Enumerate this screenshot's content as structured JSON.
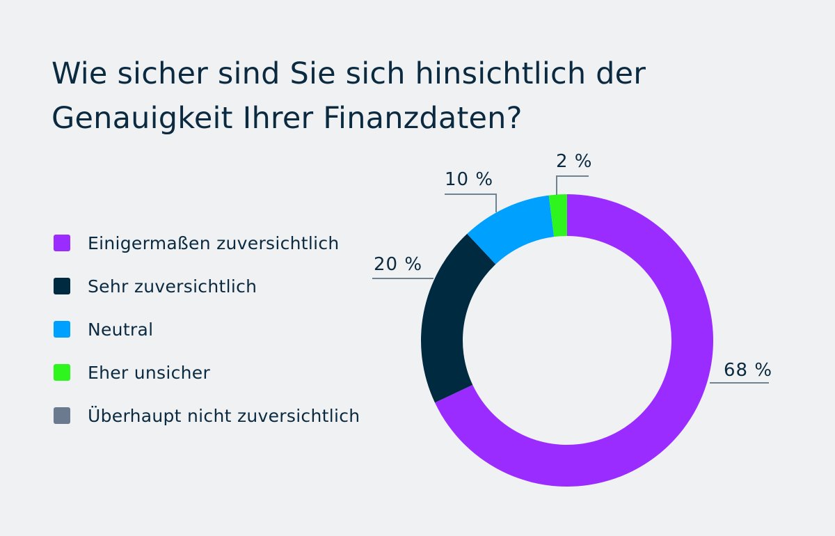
{
  "chart_data": {
    "type": "pie",
    "subtype": "donut",
    "title": "Wie sicher sind Sie sich hinsichtlich der Genauigkeit Ihrer Finanzdaten?",
    "title_lines": [
      "Wie sicher sind Sie sich hinsichtlich der",
      "Genauigkeit Ihrer Finanzdaten?"
    ],
    "legend_position": "left",
    "categories": [
      "Einigermaßen zuversichtlich",
      "Sehr zuversichtlich",
      "Neutral",
      "Eher unsicher",
      "Überhaupt nicht zuversichtlich"
    ],
    "values": [
      68,
      20,
      10,
      2,
      0
    ],
    "data_labels": [
      "68 %",
      "20 %",
      "10 %",
      "2 %",
      ""
    ],
    "colors": [
      "#9b2cff",
      "#002a40",
      "#00a0ff",
      "#2ef51e",
      "#6b7a8f"
    ]
  }
}
